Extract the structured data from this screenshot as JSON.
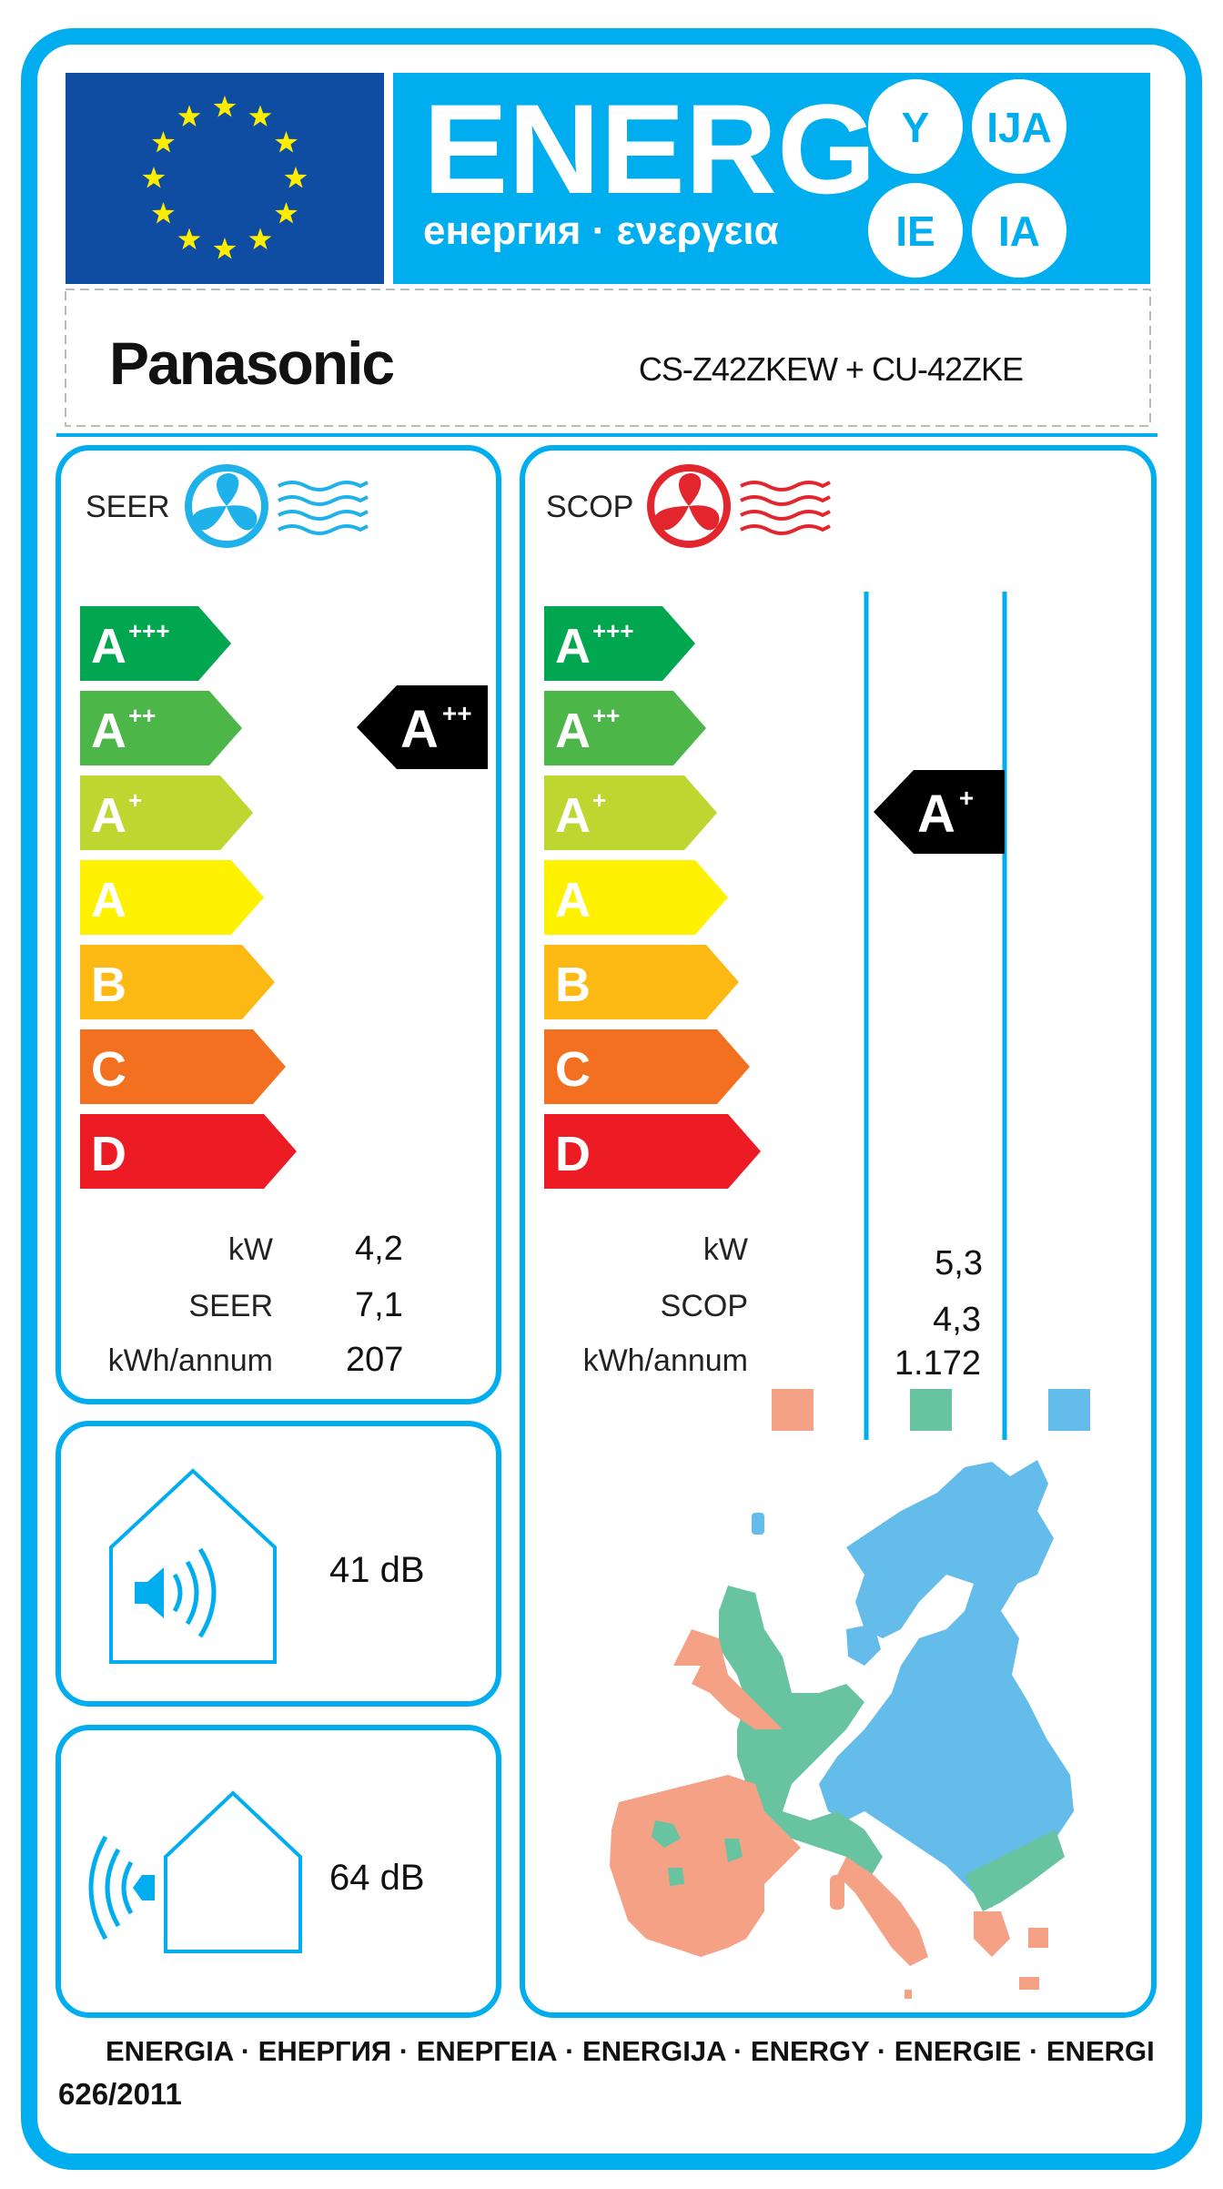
{
  "header": {
    "title": "ENERG",
    "subtitle": "енергия · ενεργεια",
    "suffixes": [
      "Y",
      "IJA",
      "IE",
      "IA"
    ],
    "eu_flag_stars": 12
  },
  "supplier": {
    "brand": "Panasonic",
    "model": "CS-Z42ZKEW + CU-42ZKE"
  },
  "scale_classes": [
    {
      "letter": "A",
      "sup": "+++",
      "color": "#00a650"
    },
    {
      "letter": "A",
      "sup": "++",
      "color": "#4cb748"
    },
    {
      "letter": "A",
      "sup": "+",
      "color": "#bed630"
    },
    {
      "letter": "A",
      "sup": "",
      "color": "#fff200"
    },
    {
      "letter": "B",
      "sup": "",
      "color": "#fdb913"
    },
    {
      "letter": "C",
      "sup": "",
      "color": "#f37021"
    },
    {
      "letter": "D",
      "sup": "",
      "color": "#ed1c24"
    }
  ],
  "cooling": {
    "label": "SEER",
    "rating_letter": "A",
    "rating_sup": "++",
    "rating_class_index": 1,
    "rows": [
      {
        "label": "kW",
        "value": "4,2"
      },
      {
        "label": "SEER",
        "value": "7,1"
      },
      {
        "label": "kWh/annum",
        "value": "207"
      }
    ]
  },
  "heating": {
    "label": "SCOP",
    "rating_letter": "A",
    "rating_sup": "+",
    "rating_class_index": 2,
    "rows": [
      {
        "label": "kW",
        "value": "5,3"
      },
      {
        "label": "SCOP",
        "value": "4,3"
      },
      {
        "label": "kWh/annum",
        "value": "1.172"
      }
    ],
    "climate_zone_colors": [
      "#f4a185",
      "#68c4a0",
      "#63bce9"
    ]
  },
  "noise": {
    "indoor": "41 dB",
    "outdoor": "64 dB"
  },
  "footer": {
    "languages": "ENERGIA · ЕНЕРГИЯ · ΕΝΕΡΓΕΙΑ · ENERGIJA · ENERGY · ENERGIE · ENERGI",
    "regulation": "626/2011"
  },
  "colors": {
    "frame": "#00aeef",
    "eu_blue": "#0f4da2",
    "star": "#ffed00",
    "cool_icon": "#1fb1ea",
    "heat_icon": "#e3262d"
  }
}
